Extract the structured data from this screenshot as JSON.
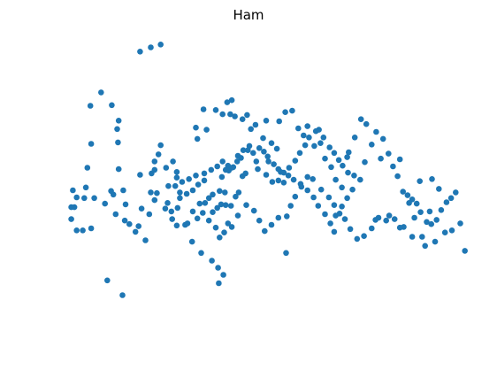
{
  "chart_data": {
    "type": "scatter",
    "title": "Ham",
    "xlabel": "",
    "ylabel": "",
    "axes_visible": false,
    "grid": false,
    "legend": false,
    "xlim": [
      -2.2,
      3.1
    ],
    "ylim": [
      -2.3,
      2.1
    ],
    "marker_color": "#1f77b4",
    "points": [
      [
        -1.2,
        1.87
      ],
      [
        -1.06,
        1.93
      ],
      [
        -0.93,
        1.97
      ],
      [
        -1.71,
        1.29
      ],
      [
        -1.85,
        1.1
      ],
      [
        -1.57,
        1.11
      ],
      [
        -1.48,
        0.89
      ],
      [
        -1.5,
        0.77
      ],
      [
        -1.84,
        0.56
      ],
      [
        -1.49,
        0.58
      ],
      [
        -1.89,
        0.22
      ],
      [
        -1.48,
        0.2
      ],
      [
        -1.42,
        -0.1
      ],
      [
        -1.2,
        0.12
      ],
      [
        -1.91,
        -0.06
      ],
      [
        -2.08,
        -0.1
      ],
      [
        -2.03,
        -0.2
      ],
      [
        -2.06,
        -0.34
      ],
      [
        -2.1,
        -0.34
      ],
      [
        -2.1,
        -0.51
      ],
      [
        -2.03,
        -0.67
      ],
      [
        -1.95,
        -0.67
      ],
      [
        -1.84,
        -0.64
      ],
      [
        -1.93,
        -0.21
      ],
      [
        -1.8,
        -0.21
      ],
      [
        -1.66,
        -0.29
      ],
      [
        -1.58,
        -0.11
      ],
      [
        -1.55,
        -0.16
      ],
      [
        -1.52,
        -0.44
      ],
      [
        -1.39,
        -0.3
      ],
      [
        -1.4,
        -0.53
      ],
      [
        -1.34,
        -0.58
      ],
      [
        -1.26,
        -0.69
      ],
      [
        -1.22,
        -0.61
      ],
      [
        -1.18,
        -0.36
      ],
      [
        -1.08,
        -0.44
      ],
      [
        -1.13,
        -0.81
      ],
      [
        -1.01,
        -0.24
      ],
      [
        -1.06,
        -0.13
      ],
      [
        -1.05,
        0.14
      ],
      [
        -0.93,
        0.54
      ],
      [
        -0.96,
        0.41
      ],
      [
        -1.01,
        0.31
      ],
      [
        -1.01,
        0.19
      ],
      [
        -0.86,
        0.22
      ],
      [
        -0.77,
        0.31
      ],
      [
        -0.72,
        0.16
      ],
      [
        -0.72,
        0.08
      ],
      [
        -0.83,
        -0.04
      ],
      [
        -0.98,
        -0.14
      ],
      [
        -0.87,
        -0.36
      ],
      [
        -0.84,
        -0.28
      ],
      [
        -0.79,
        -0.4
      ],
      [
        -0.68,
        -0.21
      ],
      [
        -0.78,
        -0.51
      ],
      [
        -0.71,
        -0.35
      ],
      [
        -0.72,
        -0.6
      ],
      [
        -0.61,
        -0.59
      ],
      [
        -0.58,
        -0.57
      ],
      [
        -0.51,
        -0.4
      ],
      [
        -0.42,
        -0.29
      ],
      [
        -0.35,
        -0.28
      ],
      [
        -0.3,
        -0.21
      ],
      [
        -0.25,
        -0.16
      ],
      [
        -0.25,
        -0.41
      ],
      [
        -0.19,
        -0.35
      ],
      [
        -0.14,
        -0.3
      ],
      [
        -0.16,
        -0.11
      ],
      [
        -0.09,
        -0.13
      ],
      [
        -0.08,
        -0.31
      ],
      [
        -0.01,
        -0.32
      ],
      [
        0.05,
        -0.19
      ],
      [
        0.09,
        -0.13
      ],
      [
        -0.13,
        0.09
      ],
      [
        -0.08,
        0.19
      ],
      [
        -0.05,
        0.25
      ],
      [
        0.02,
        0.23
      ],
      [
        0.14,
        0.1
      ],
      [
        0.18,
        0.14
      ],
      [
        0.08,
        0.39
      ],
      [
        0.15,
        0.47
      ],
      [
        0.23,
        0.53
      ],
      [
        0.32,
        0.31
      ],
      [
        0.34,
        0.2
      ],
      [
        0.48,
        0.31
      ],
      [
        0.45,
        0.12
      ],
      [
        0.53,
        0.02
      ],
      [
        0.61,
        0.04
      ],
      [
        0.68,
        0.01
      ],
      [
        0.64,
        0.16
      ],
      [
        0.75,
        0.22
      ],
      [
        0.83,
        0.32
      ],
      [
        0.89,
        0.43
      ],
      [
        0.96,
        0.54
      ],
      [
        1.01,
        0.65
      ],
      [
        1.1,
        0.74
      ],
      [
        1.14,
        0.76
      ],
      [
        1.2,
        0.65
      ],
      [
        1.28,
        0.51
      ],
      [
        1.34,
        0.43
      ],
      [
        1.4,
        0.33
      ],
      [
        1.45,
        0.25
      ],
      [
        1.52,
        0.15
      ],
      [
        1.6,
        0.11
      ],
      [
        1.68,
        0.05
      ],
      [
        1.58,
        -0.09
      ],
      [
        1.51,
        -0.21
      ],
      [
        1.44,
        -0.33
      ],
      [
        1.36,
        -0.46
      ],
      [
        1.29,
        -0.57
      ],
      [
        1.22,
        -0.44
      ],
      [
        1.13,
        -0.32
      ],
      [
        1.07,
        -0.2
      ],
      [
        0.99,
        -0.1
      ],
      [
        0.91,
        -0.05
      ],
      [
        0.83,
        -0.19
      ],
      [
        0.77,
        -0.32
      ],
      [
        0.72,
        -0.47
      ],
      [
        0.61,
        -0.49
      ],
      [
        0.52,
        -0.59
      ],
      [
        0.43,
        -0.68
      ],
      [
        0.36,
        -0.53
      ],
      [
        0.29,
        -0.39
      ],
      [
        0.19,
        -0.31
      ],
      [
        0.08,
        -0.46
      ],
      [
        0.0,
        -0.62
      ],
      [
        -0.05,
        -0.57
      ],
      [
        -0.1,
        -0.7
      ],
      [
        -0.16,
        -0.77
      ],
      [
        -0.21,
        -0.63
      ],
      [
        -0.3,
        -0.53
      ],
      [
        -0.38,
        -0.42
      ],
      [
        -0.45,
        -0.5
      ],
      [
        -0.52,
        -0.83
      ],
      [
        -0.4,
        -0.99
      ],
      [
        -0.26,
        -1.1
      ],
      [
        -0.18,
        -1.2
      ],
      [
        -0.17,
        -1.42
      ],
      [
        -0.11,
        -1.3
      ],
      [
        -1.63,
        -1.38
      ],
      [
        -1.43,
        -1.59
      ],
      [
        -0.45,
        0.63
      ],
      [
        -0.33,
        0.76
      ],
      [
        -0.47,
        0.79
      ],
      [
        -0.37,
        1.05
      ],
      [
        -0.21,
        1.04
      ],
      [
        -0.12,
        0.98
      ],
      [
        -0.06,
        1.15
      ],
      [
        0.0,
        1.18
      ],
      [
        -0.02,
        0.98
      ],
      [
        0.04,
        0.95
      ],
      [
        0.14,
        0.91
      ],
      [
        0.2,
        0.97
      ],
      [
        0.25,
        0.77
      ],
      [
        0.31,
        0.83
      ],
      [
        0.41,
        0.64
      ],
      [
        0.45,
        0.89
      ],
      [
        0.52,
        0.57
      ],
      [
        0.59,
        0.49
      ],
      [
        0.62,
        0.88
      ],
      [
        0.7,
        1.01
      ],
      [
        0.79,
        1.03
      ],
      [
        0.87,
        0.78
      ],
      [
        0.94,
        0.68
      ],
      [
        0.99,
        0.81
      ],
      [
        1.08,
        0.53
      ],
      [
        1.16,
        0.57
      ],
      [
        1.22,
        0.35
      ],
      [
        1.3,
        0.23
      ],
      [
        1.36,
        0.05
      ],
      [
        1.44,
        -0.06
      ],
      [
        1.53,
        0.44
      ],
      [
        1.61,
        0.65
      ],
      [
        1.69,
        0.91
      ],
      [
        1.76,
        0.84
      ],
      [
        1.83,
        0.55
      ],
      [
        1.89,
        0.73
      ],
      [
        1.98,
        0.63
      ],
      [
        2.05,
        0.42
      ],
      [
        2.11,
        0.24
      ],
      [
        2.17,
        0.1
      ],
      [
        2.24,
        -0.12
      ],
      [
        2.3,
        -0.17
      ],
      [
        2.36,
        -0.23
      ],
      [
        2.42,
        -0.29
      ],
      [
        2.47,
        -0.41
      ],
      [
        2.55,
        -0.55
      ],
      [
        2.61,
        -0.58
      ],
      [
        2.68,
        -0.52
      ],
      [
        2.74,
        -0.38
      ],
      [
        2.81,
        -0.27
      ],
      [
        2.87,
        -0.21
      ],
      [
        2.93,
        -0.13
      ],
      [
        2.99,
        -0.57
      ],
      [
        3.05,
        -0.96
      ],
      [
        2.88,
        -0.67
      ],
      [
        2.79,
        -0.7
      ],
      [
        2.66,
        -0.83
      ],
      [
        2.53,
        -0.89
      ],
      [
        2.49,
        -0.76
      ],
      [
        2.36,
        -0.76
      ],
      [
        2.25,
        -0.62
      ],
      [
        2.2,
        -0.63
      ],
      [
        2.13,
        -0.51
      ],
      [
        2.06,
        -0.46
      ],
      [
        2.02,
        -0.53
      ],
      [
        1.92,
        -0.49
      ],
      [
        1.88,
        -0.52
      ],
      [
        1.83,
        -0.64
      ],
      [
        1.73,
        -0.75
      ],
      [
        1.64,
        -0.79
      ],
      [
        1.55,
        -0.65
      ],
      [
        1.48,
        -0.51
      ],
      [
        1.41,
        -0.43
      ],
      [
        1.34,
        -0.31
      ],
      [
        1.27,
        -0.2
      ],
      [
        1.17,
        -0.09
      ],
      [
        1.06,
        0.06
      ],
      [
        0.99,
        0.09
      ],
      [
        0.9,
        -0.01
      ],
      [
        0.81,
        0.05
      ],
      [
        0.74,
        0.11
      ],
      [
        0.68,
        0.15
      ],
      [
        0.61,
        0.2
      ],
      [
        0.55,
        0.27
      ],
      [
        0.47,
        0.38
      ],
      [
        0.42,
        0.45
      ],
      [
        0.36,
        0.5
      ],
      [
        0.28,
        0.43
      ],
      [
        0.21,
        0.47
      ],
      [
        0.12,
        0.36
      ],
      [
        0.07,
        0.31
      ],
      [
        0.0,
        0.22
      ],
      [
        -0.04,
        0.18
      ],
      [
        -0.12,
        0.31
      ],
      [
        -0.19,
        0.24
      ],
      [
        -0.27,
        0.19
      ],
      [
        -0.36,
        0.14
      ],
      [
        -0.47,
        0.11
      ],
      [
        -0.56,
        0.06
      ],
      [
        -0.65,
        0.02
      ],
      [
        -0.74,
        -0.04
      ],
      [
        -0.68,
        -0.13
      ],
      [
        -0.59,
        -0.15
      ],
      [
        -0.51,
        -0.1
      ],
      [
        -0.44,
        -0.02
      ],
      [
        -0.36,
        0.04
      ],
      [
        0.71,
        -0.99
      ],
      [
        1.34,
        -0.69
      ],
      [
        2.32,
        -0.28
      ],
      [
        2.39,
        -0.49
      ],
      [
        2.59,
        -0.4
      ],
      [
        2.62,
        0.06
      ],
      [
        2.71,
        -0.08
      ],
      [
        2.46,
        0.03
      ],
      [
        2.2,
        0.34
      ],
      [
        1.95,
        0.35
      ],
      [
        1.74,
        0.3
      ],
      [
        1.51,
        0.37
      ]
    ]
  }
}
